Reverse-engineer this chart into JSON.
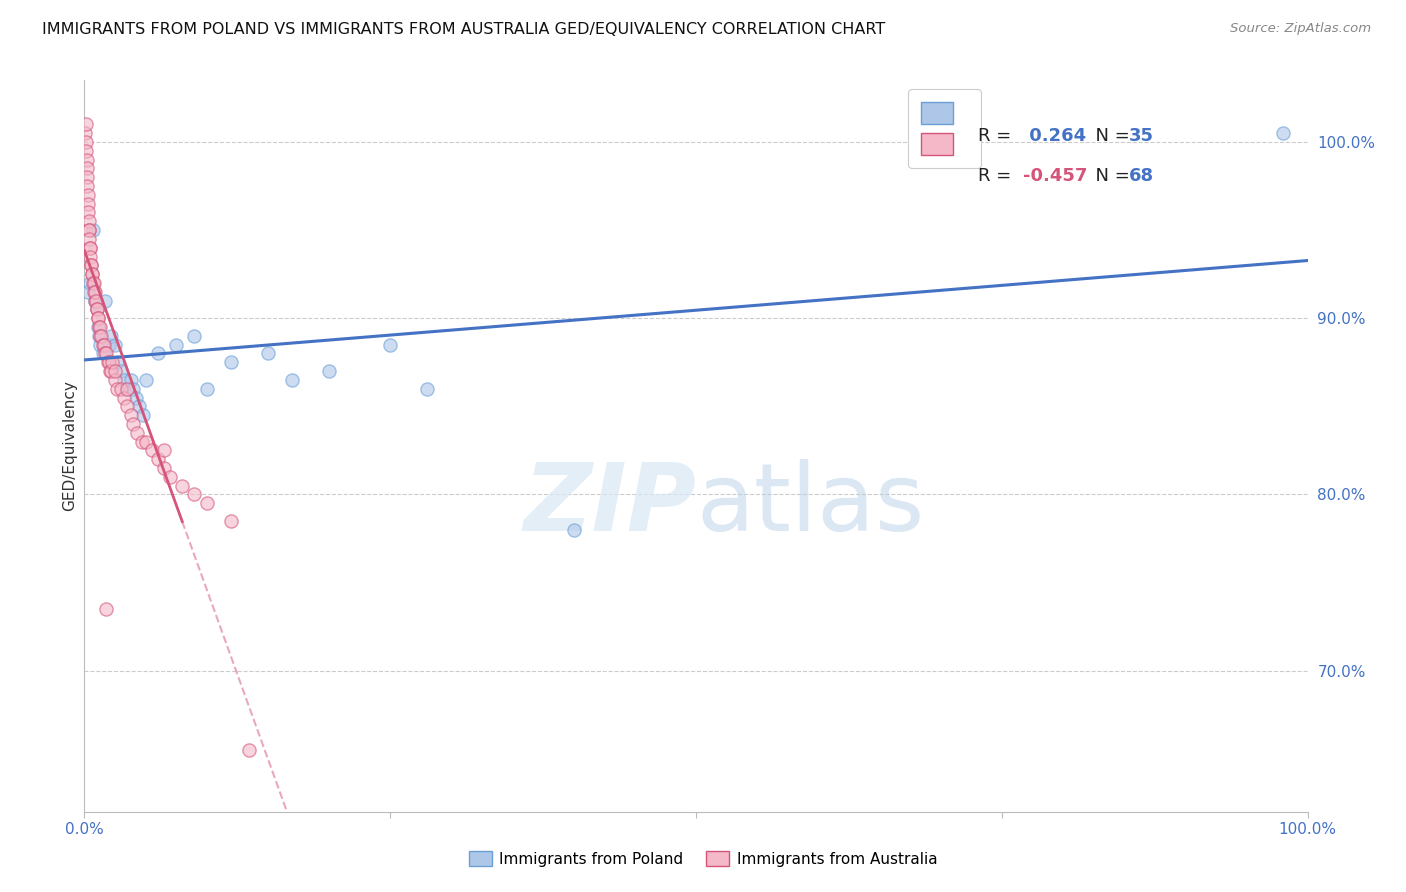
{
  "title": "IMMIGRANTS FROM POLAND VS IMMIGRANTS FROM AUSTRALIA GED/EQUIVALENCY CORRELATION CHART",
  "source": "Source: ZipAtlas.com",
  "ylabel": "GED/Equivalency",
  "y_ticks": [
    70.0,
    80.0,
    90.0,
    100.0
  ],
  "y_tick_labels": [
    "70.0%",
    "80.0%",
    "90.0%",
    "100.0%"
  ],
  "xmin": 0.0,
  "xmax": 100.0,
  "ymin": 62.0,
  "ymax": 103.5,
  "poland_r": 0.264,
  "poland_n": 35,
  "australia_r": -0.457,
  "australia_n": 68,
  "poland_dots": [
    [
      0.3,
      91.5
    ],
    [
      0.5,
      92.0
    ],
    [
      0.7,
      95.0
    ],
    [
      0.9,
      91.0
    ],
    [
      1.0,
      90.5
    ],
    [
      1.1,
      89.5
    ],
    [
      1.2,
      89.0
    ],
    [
      1.3,
      88.5
    ],
    [
      1.5,
      88.0
    ],
    [
      1.7,
      91.0
    ],
    [
      2.0,
      88.5
    ],
    [
      2.2,
      89.0
    ],
    [
      2.5,
      88.5
    ],
    [
      2.7,
      87.5
    ],
    [
      3.0,
      87.0
    ],
    [
      3.2,
      86.5
    ],
    [
      3.5,
      86.0
    ],
    [
      3.8,
      86.5
    ],
    [
      4.0,
      86.0
    ],
    [
      4.2,
      85.5
    ],
    [
      4.5,
      85.0
    ],
    [
      4.8,
      84.5
    ],
    [
      5.0,
      86.5
    ],
    [
      6.0,
      88.0
    ],
    [
      7.5,
      88.5
    ],
    [
      9.0,
      89.0
    ],
    [
      10.0,
      86.0
    ],
    [
      12.0,
      87.5
    ],
    [
      15.0,
      88.0
    ],
    [
      17.0,
      86.5
    ],
    [
      20.0,
      87.0
    ],
    [
      25.0,
      88.5
    ],
    [
      28.0,
      86.0
    ],
    [
      40.0,
      78.0
    ],
    [
      98.0,
      100.5
    ]
  ],
  "australia_dots": [
    [
      0.05,
      100.5
    ],
    [
      0.1,
      101.0
    ],
    [
      0.12,
      100.0
    ],
    [
      0.15,
      99.5
    ],
    [
      0.18,
      99.0
    ],
    [
      0.2,
      98.5
    ],
    [
      0.22,
      98.0
    ],
    [
      0.25,
      97.5
    ],
    [
      0.28,
      97.0
    ],
    [
      0.3,
      96.5
    ],
    [
      0.32,
      96.0
    ],
    [
      0.35,
      95.5
    ],
    [
      0.38,
      95.0
    ],
    [
      0.4,
      95.0
    ],
    [
      0.42,
      94.5
    ],
    [
      0.45,
      94.0
    ],
    [
      0.48,
      94.0
    ],
    [
      0.5,
      93.5
    ],
    [
      0.52,
      93.0
    ],
    [
      0.55,
      93.0
    ],
    [
      0.6,
      92.5
    ],
    [
      0.65,
      92.5
    ],
    [
      0.7,
      92.0
    ],
    [
      0.75,
      92.0
    ],
    [
      0.8,
      91.5
    ],
    [
      0.85,
      91.0
    ],
    [
      0.9,
      91.5
    ],
    [
      0.95,
      91.0
    ],
    [
      1.0,
      90.5
    ],
    [
      1.05,
      90.5
    ],
    [
      1.1,
      90.0
    ],
    [
      1.15,
      90.0
    ],
    [
      1.2,
      89.5
    ],
    [
      1.25,
      89.5
    ],
    [
      1.3,
      89.0
    ],
    [
      1.4,
      89.0
    ],
    [
      1.5,
      88.5
    ],
    [
      1.6,
      88.5
    ],
    [
      1.7,
      88.0
    ],
    [
      1.8,
      88.0
    ],
    [
      1.9,
      87.5
    ],
    [
      2.0,
      87.5
    ],
    [
      2.1,
      87.0
    ],
    [
      2.2,
      87.0
    ],
    [
      2.3,
      87.5
    ],
    [
      2.5,
      86.5
    ],
    [
      2.7,
      86.0
    ],
    [
      3.0,
      86.0
    ],
    [
      3.2,
      85.5
    ],
    [
      3.5,
      85.0
    ],
    [
      3.8,
      84.5
    ],
    [
      4.0,
      84.0
    ],
    [
      4.3,
      83.5
    ],
    [
      4.7,
      83.0
    ],
    [
      5.0,
      83.0
    ],
    [
      5.5,
      82.5
    ],
    [
      6.0,
      82.0
    ],
    [
      6.5,
      81.5
    ],
    [
      7.0,
      81.0
    ],
    [
      8.0,
      80.5
    ],
    [
      9.0,
      80.0
    ],
    [
      10.0,
      79.5
    ],
    [
      12.0,
      78.5
    ],
    [
      2.5,
      87.0
    ],
    [
      3.5,
      86.0
    ],
    [
      6.5,
      82.5
    ],
    [
      13.5,
      65.5
    ],
    [
      1.8,
      73.5
    ]
  ],
  "poland_line_color": "#4472c4",
  "australia_line_color": "#d4547a",
  "poland_dot_fill": "#aec6e8",
  "poland_dot_edge": "#6a9fd8",
  "australia_dot_fill": "#f4b8c8",
  "australia_dot_edge": "#d4547a",
  "dot_alpha": 0.6,
  "dot_size": 90,
  "watermark_zip": "ZIP",
  "watermark_atlas": "atlas",
  "grid_color": "#cccccc",
  "background_color": "#ffffff",
  "title_fontsize": 11.5,
  "source_fontsize": 9.5,
  "tick_color": "#4472c4",
  "ylabel_color": "#333333",
  "legend_box_color": "#cccccc"
}
